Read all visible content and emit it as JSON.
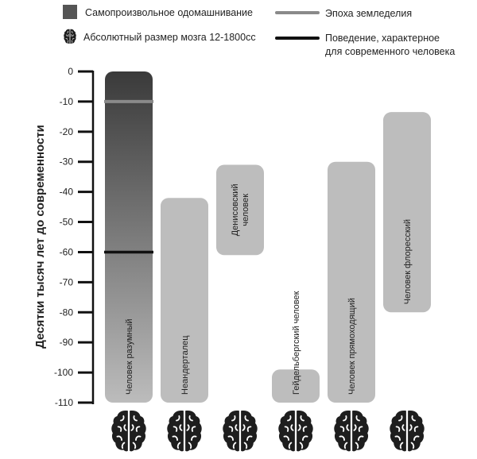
{
  "chart_data": {
    "type": "bar",
    "subtype": "floating-range-timeline",
    "ylabel": "Десятки тысяч лет до современности",
    "ylim": [
      -110,
      0
    ],
    "yticks": [
      0,
      -10,
      -20,
      -30,
      -40,
      -50,
      -60,
      -70,
      -80,
      -90,
      -100,
      -110
    ],
    "grid": false,
    "legend_placement": "top",
    "legend": {
      "domestication": "Самопроизвольное одомашнивание",
      "brain": "Абсолютный размер мозга 12-1800cc",
      "agriculture": "Эпоха земледелия",
      "behavior_line1": "Поведение, характерное",
      "behavior_line2": "для современного человека"
    },
    "series": [
      {
        "name": "Человек разумный",
        "lines": [
          "Человек разумный"
        ],
        "range": [
          -110,
          0
        ],
        "gradient": true
      },
      {
        "name": "Неандерталец",
        "lines": [
          "Неандерталец"
        ],
        "range": [
          -110,
          -42
        ]
      },
      {
        "name": "Денисовский человек",
        "lines": [
          "Денисовский",
          "человек"
        ],
        "range": [
          -61,
          -31
        ]
      },
      {
        "name": "Гейдельбергский человек",
        "lines": [
          "Гейдельбергский человек"
        ],
        "range": [
          -110,
          -99
        ]
      },
      {
        "name": "Человек прямоходящий",
        "lines": [
          "Человек прямоходящий"
        ],
        "range": [
          -110,
          -30
        ]
      },
      {
        "name": "Человек флоресский",
        "lines": [
          "Человек флоресский"
        ],
        "range": [
          -80,
          -13.5
        ]
      }
    ],
    "markers": {
      "agriculture": -10,
      "modern_behavior": -60
    },
    "colors": {
      "bar": "#bdbdbd",
      "gradient_top": "#3a3a3a",
      "gradient_bottom": "#bcbcbc",
      "agriculture": "#8a8a8a",
      "behavior": "#111111",
      "legend_square": "#555555"
    }
  }
}
